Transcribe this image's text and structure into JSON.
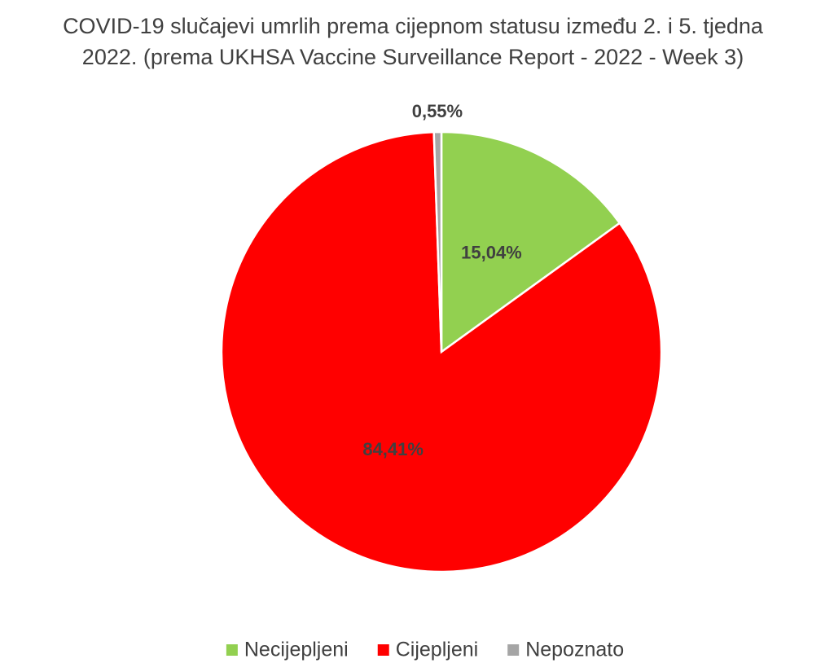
{
  "chart_data": {
    "type": "pie",
    "title": [
      "COVID-19 slučajevi umrlih prema cijepnom statusu između 2. i 5. tjedna",
      "2022. (prema UKHSA Vaccine Surveillance Report - 2022 - Week 3)"
    ],
    "categories": [
      "Necijepljeni",
      "Cijepljeni",
      "Nepoznato"
    ],
    "values": [
      15.04,
      84.41,
      0.55
    ],
    "value_labels": [
      "15,04%",
      "84,41%",
      "0,55%"
    ],
    "colors": [
      "#92d050",
      "#ff0000",
      "#a5a5a5"
    ],
    "legend": "bottom"
  }
}
